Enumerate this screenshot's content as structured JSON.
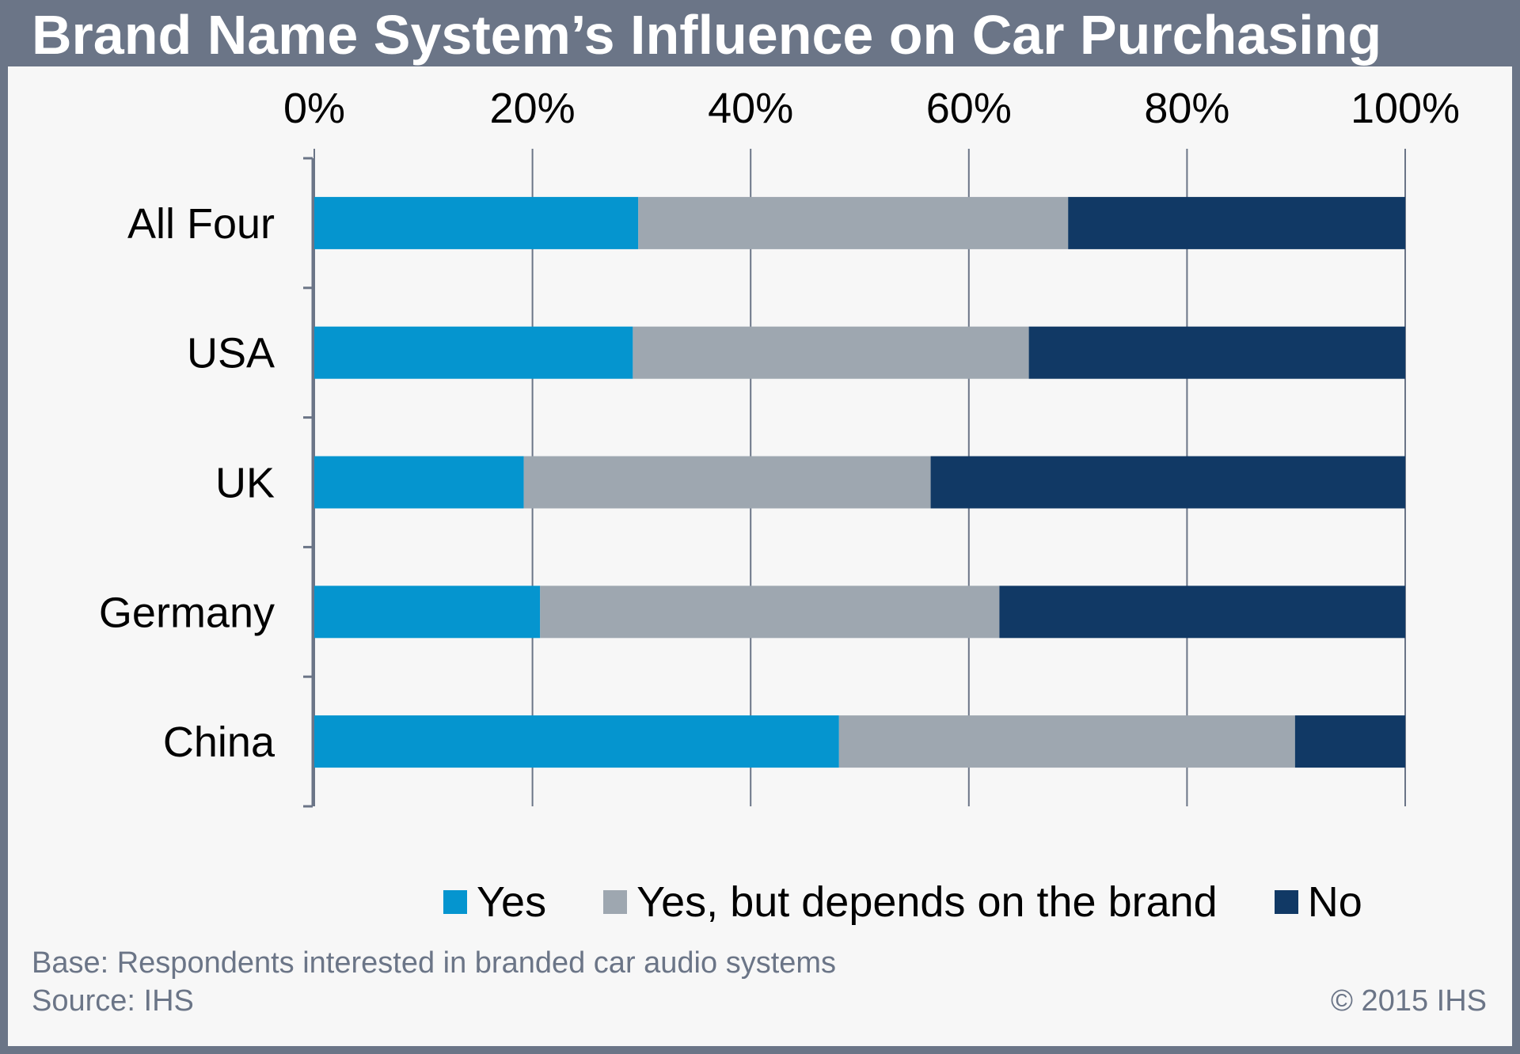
{
  "title": "Brand Name System’s Influence on Car Purchasing",
  "footnote_base": "Base: Respondents interested in branded car audio systems",
  "footnote_source": "Source: IHS",
  "copyright": "© 2015 IHS",
  "chart_data": {
    "type": "bar",
    "orientation": "horizontal",
    "stacked": "100%",
    "title": "Brand Name System’s Influence on Car Purchasing",
    "categories": [
      "All Four",
      "USA",
      "UK",
      "Germany",
      "China"
    ],
    "series": [
      {
        "name": "Yes",
        "values": [
          29.7,
          29.2,
          19.2,
          20.7,
          48.1
        ],
        "color": "#0595cf"
      },
      {
        "name": "Yes, but depends on the brand",
        "values": [
          39.4,
          36.3,
          37.3,
          42.1,
          41.8
        ],
        "color": "#9ea7b0"
      },
      {
        "name": "No",
        "values": [
          30.9,
          34.5,
          43.5,
          37.2,
          10.1
        ],
        "color": "#113965"
      }
    ],
    "x_ticks": [
      "0%",
      "20%",
      "40%",
      "60%",
      "80%",
      "100%"
    ],
    "xlim": [
      0,
      100
    ],
    "grid": true,
    "axis_position": "top",
    "legend_position": "bottom"
  }
}
